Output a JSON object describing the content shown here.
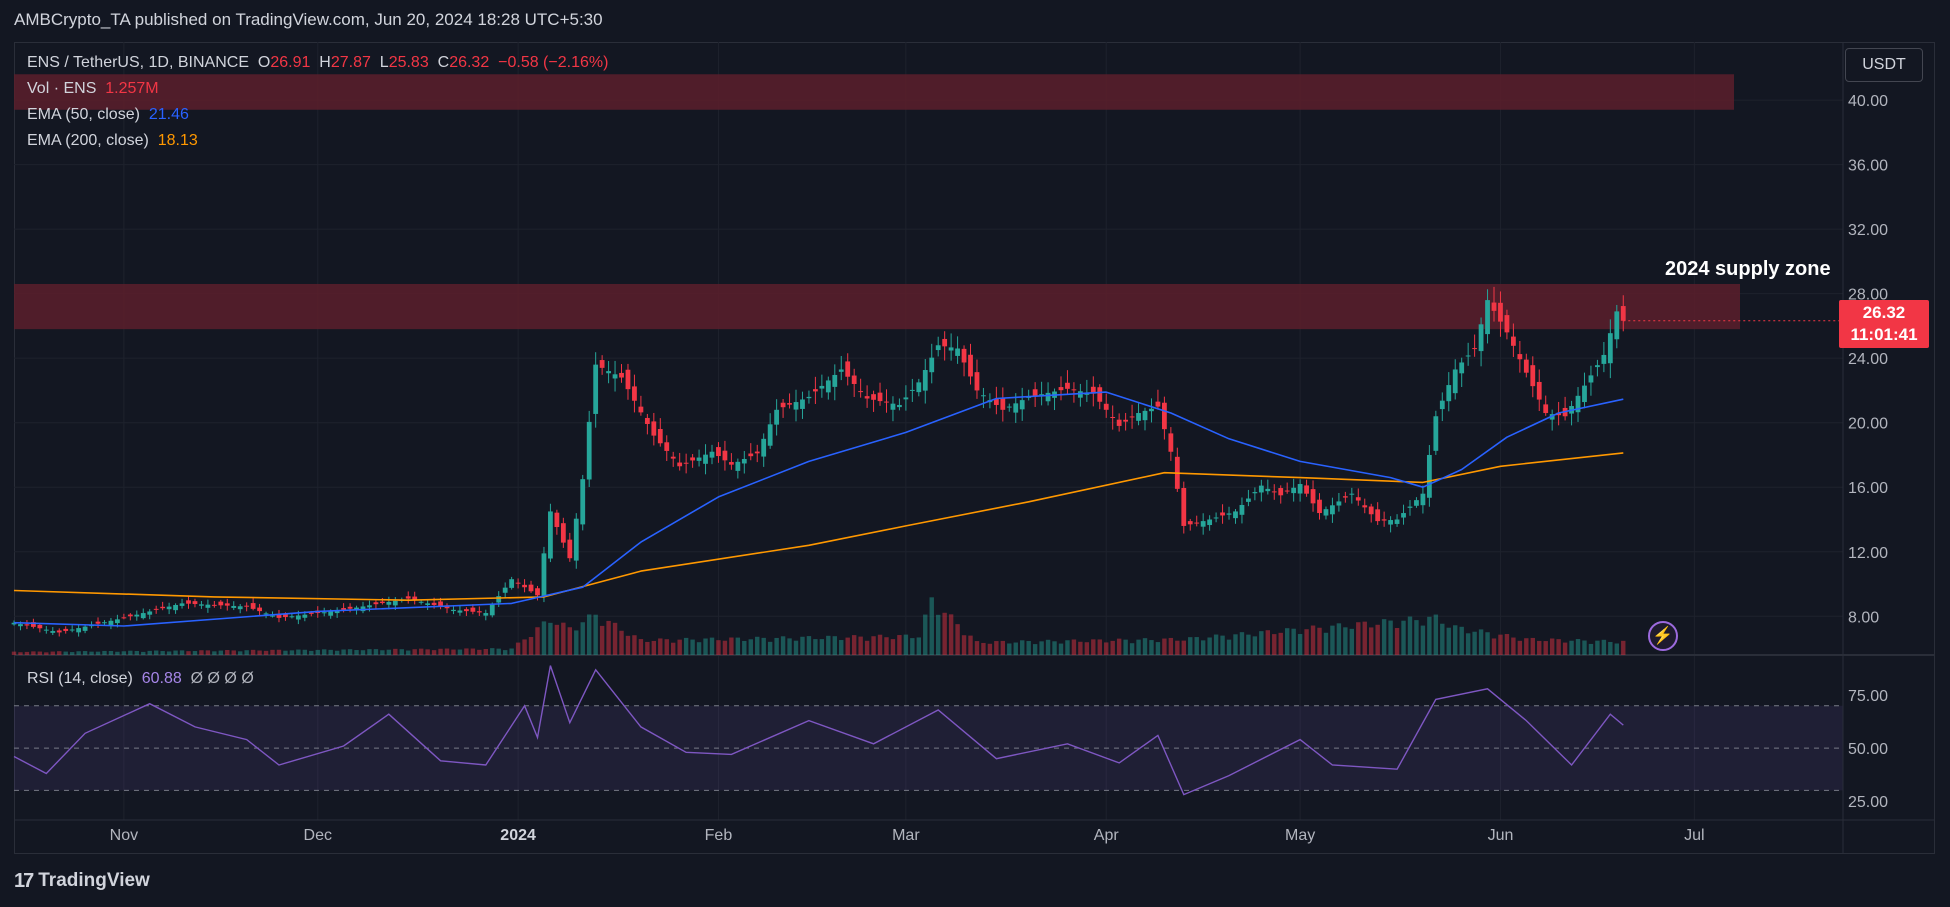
{
  "header": {
    "published": "AMBCrypto_TA published on TradingView.com, Jun 20, 2024 18:28 UTC+5:30"
  },
  "legend": {
    "symbol": "ENS / TetherUS, 1D, BINANCE",
    "o_label": "O",
    "o_value": "26.91",
    "h_label": "H",
    "h_value": "27.87",
    "l_label": "L",
    "l_value": "25.83",
    "c_label": "C",
    "c_value": "26.32",
    "change": "−0.58 (−2.16%)",
    "vol_label": "Vol · ENS",
    "vol_value": "1.257M",
    "ema50_label": "EMA (50, close)",
    "ema50_value": "21.46",
    "ema200_label": "EMA (200, close)",
    "ema200_value": "18.13",
    "rsi_label": "RSI (14, close)",
    "rsi_value": "60.88",
    "rsi_extra": "Ø Ø Ø Ø"
  },
  "currency_button": "USDT",
  "last_price": {
    "price": "26.32",
    "countdown": "11:01:41"
  },
  "annotation": "2024 supply zone",
  "footer": {
    "brand": "TradingView",
    "logo_glyph": "17"
  },
  "colors": {
    "background": "#131722",
    "up": "#26a69a",
    "down": "#f23645",
    "ema50": "#2962ff",
    "ema200": "#ff9800",
    "rsi": "#7e57c2",
    "zone": "#5c1f2b"
  },
  "chart_data": {
    "type": "candlestick",
    "title": "ENS / TetherUS, 1D, BINANCE",
    "y_ticks": [
      "40.00",
      "36.00",
      "32.00",
      "28.00",
      "24.00",
      "20.00",
      "16.00",
      "12.00",
      "8.00"
    ],
    "ylim": [
      5.6,
      43.6
    ],
    "x_ticks": [
      "Nov",
      "Dec",
      "2024",
      "Feb",
      "Mar",
      "Apr",
      "May",
      "Jun",
      "Jul"
    ],
    "x_range": [
      "2023-10-15",
      "2024-07-24"
    ],
    "tick_dates": [
      "2023-11-01",
      "2023-12-01",
      "2024-01-01",
      "2024-02-01",
      "2024-03-01",
      "2024-04-01",
      "2024-05-01",
      "2024-06-01",
      "2024-07-01"
    ],
    "supply_zones": [
      {
        "from": 25.8,
        "to": 28.6,
        "label": "2024 supply zone"
      },
      {
        "from": 39.4,
        "to": 41.6
      }
    ],
    "price_path": [
      [
        "2023-10-15",
        7.6
      ],
      [
        "2023-10-22",
        7.0
      ],
      [
        "2023-11-01",
        7.9
      ],
      [
        "2023-11-10",
        8.8
      ],
      [
        "2023-11-20",
        8.6
      ],
      [
        "2023-11-25",
        7.9
      ],
      [
        "2023-12-05",
        8.4
      ],
      [
        "2023-12-15",
        9.1
      ],
      [
        "2023-12-22",
        8.4
      ],
      [
        "2023-12-27",
        8.2
      ],
      [
        "2023-12-31",
        10.3
      ],
      [
        "2024-01-04",
        9.3
      ],
      [
        "2024-01-06",
        14.5
      ],
      [
        "2024-01-09",
        11.6
      ],
      [
        "2024-01-11",
        16.5
      ],
      [
        "2024-01-13",
        23.6
      ],
      [
        "2024-01-17",
        22.8
      ],
      [
        "2024-01-22",
        19.2
      ],
      [
        "2024-01-26",
        17.3
      ],
      [
        "2024-01-31",
        18.2
      ],
      [
        "2024-02-03",
        17.4
      ],
      [
        "2024-02-07",
        18.1
      ],
      [
        "2024-02-10",
        20.8
      ],
      [
        "2024-02-15",
        21.6
      ],
      [
        "2024-02-20",
        23.3
      ],
      [
        "2024-02-24",
        21.5
      ],
      [
        "2024-02-29",
        21.1
      ],
      [
        "2024-03-03",
        22.5
      ],
      [
        "2024-03-06",
        24.8
      ],
      [
        "2024-03-09",
        24.6
      ],
      [
        "2024-03-12",
        22.0
      ],
      [
        "2024-03-16",
        20.8
      ],
      [
        "2024-03-20",
        21.6
      ],
      [
        "2024-03-26",
        22.1
      ],
      [
        "2024-03-30",
        21.8
      ],
      [
        "2024-04-03",
        19.8
      ],
      [
        "2024-04-06",
        20.6
      ],
      [
        "2024-04-09",
        21.0
      ],
      [
        "2024-04-11",
        18.2
      ],
      [
        "2024-04-13",
        13.6
      ],
      [
        "2024-04-17",
        14.0
      ],
      [
        "2024-04-21",
        14.5
      ],
      [
        "2024-04-25",
        16.1
      ],
      [
        "2024-04-28",
        15.5
      ],
      [
        "2024-05-01",
        16.2
      ],
      [
        "2024-05-04",
        14.4
      ],
      [
        "2024-05-09",
        15.6
      ],
      [
        "2024-05-13",
        13.9
      ],
      [
        "2024-05-16",
        14.0
      ],
      [
        "2024-05-20",
        15.6
      ],
      [
        "2024-05-22",
        20.4
      ],
      [
        "2024-05-25",
        23.3
      ],
      [
        "2024-05-28",
        24.6
      ],
      [
        "2024-05-30",
        27.6
      ],
      [
        "2024-06-02",
        25.6
      ],
      [
        "2024-06-05",
        23.1
      ],
      [
        "2024-06-08",
        20.6
      ],
      [
        "2024-06-11",
        20.4
      ],
      [
        "2024-06-14",
        22.3
      ],
      [
        "2024-06-17",
        24.2
      ],
      [
        "2024-06-19",
        26.9
      ],
      [
        "2024-06-20",
        26.32
      ]
    ],
    "ema50_path": [
      [
        "2023-10-15",
        7.6
      ],
      [
        "2023-11-01",
        7.4
      ],
      [
        "2023-12-01",
        8.3
      ],
      [
        "2023-12-31",
        8.8
      ],
      [
        "2024-01-11",
        9.8
      ],
      [
        "2024-01-20",
        12.6
      ],
      [
        "2024-02-01",
        15.4
      ],
      [
        "2024-02-15",
        17.6
      ],
      [
        "2024-03-01",
        19.4
      ],
      [
        "2024-03-15",
        21.5
      ],
      [
        "2024-04-01",
        21.9
      ],
      [
        "2024-04-11",
        20.6
      ],
      [
        "2024-04-20",
        19.0
      ],
      [
        "2024-05-01",
        17.6
      ],
      [
        "2024-05-15",
        16.6
      ],
      [
        "2024-05-20",
        16.0
      ],
      [
        "2024-05-26",
        17.1
      ],
      [
        "2024-06-02",
        19.1
      ],
      [
        "2024-06-10",
        20.6
      ],
      [
        "2024-06-20",
        21.46
      ]
    ],
    "ema200_path": [
      [
        "2023-10-15",
        9.6
      ],
      [
        "2023-11-15",
        9.2
      ],
      [
        "2023-12-15",
        9.0
      ],
      [
        "2024-01-05",
        9.2
      ],
      [
        "2024-01-20",
        10.8
      ],
      [
        "2024-02-15",
        12.4
      ],
      [
        "2024-03-01",
        13.6
      ],
      [
        "2024-03-20",
        15.1
      ],
      [
        "2024-04-10",
        16.9
      ],
      [
        "2024-05-01",
        16.6
      ],
      [
        "2024-05-20",
        16.3
      ],
      [
        "2024-06-01",
        17.3
      ],
      [
        "2024-06-20",
        18.13
      ]
    ],
    "volume_path": [
      [
        "2023-10-15",
        0.3
      ],
      [
        "2023-12-31",
        0.6
      ],
      [
        "2024-01-06",
        3.4
      ],
      [
        "2024-01-09",
        2.5
      ],
      [
        "2024-01-13",
        3.8
      ],
      [
        "2024-01-20",
        1.4
      ],
      [
        "2024-03-03",
        1.8
      ],
      [
        "2024-03-05",
        5.2
      ],
      [
        "2024-03-12",
        1.2
      ],
      [
        "2024-04-13",
        1.5
      ],
      [
        "2024-05-22",
        3.5
      ],
      [
        "2024-05-25",
        2.6
      ],
      [
        "2024-06-05",
        1.5
      ],
      [
        "2024-06-20",
        1.257
      ]
    ],
    "rsi": {
      "label": "RSI (14, close)",
      "y_ticks": [
        "75.00",
        "50.00",
        "25.00"
      ],
      "ylim": [
        16,
        94
      ],
      "bands": [
        30,
        50,
        70
      ],
      "path": [
        [
          "2023-10-15",
          46
        ],
        [
          "2023-10-20",
          38
        ],
        [
          "2023-10-26",
          57
        ],
        [
          "2023-11-05",
          71
        ],
        [
          "2023-11-12",
          60
        ],
        [
          "2023-11-20",
          54
        ],
        [
          "2023-11-25",
          42
        ],
        [
          "2023-12-05",
          51
        ],
        [
          "2023-12-12",
          66
        ],
        [
          "2023-12-20",
          44
        ],
        [
          "2023-12-27",
          42
        ],
        [
          "2024-01-02",
          70
        ],
        [
          "2024-01-04",
          55
        ],
        [
          "2024-01-06",
          89
        ],
        [
          "2024-01-09",
          62
        ],
        [
          "2024-01-13",
          87
        ],
        [
          "2024-01-20",
          60
        ],
        [
          "2024-01-27",
          48
        ],
        [
          "2024-02-03",
          47
        ],
        [
          "2024-02-15",
          63
        ],
        [
          "2024-02-25",
          52
        ],
        [
          "2024-03-06",
          68
        ],
        [
          "2024-03-15",
          45
        ],
        [
          "2024-03-26",
          52
        ],
        [
          "2024-04-03",
          43
        ],
        [
          "2024-04-09",
          56
        ],
        [
          "2024-04-13",
          28
        ],
        [
          "2024-04-20",
          37
        ],
        [
          "2024-05-01",
          54
        ],
        [
          "2024-05-06",
          42
        ],
        [
          "2024-05-16",
          40
        ],
        [
          "2024-05-22",
          73
        ],
        [
          "2024-05-30",
          78
        ],
        [
          "2024-06-05",
          63
        ],
        [
          "2024-06-12",
          42
        ],
        [
          "2024-06-18",
          66
        ],
        [
          "2024-06-20",
          60.88
        ]
      ]
    }
  }
}
